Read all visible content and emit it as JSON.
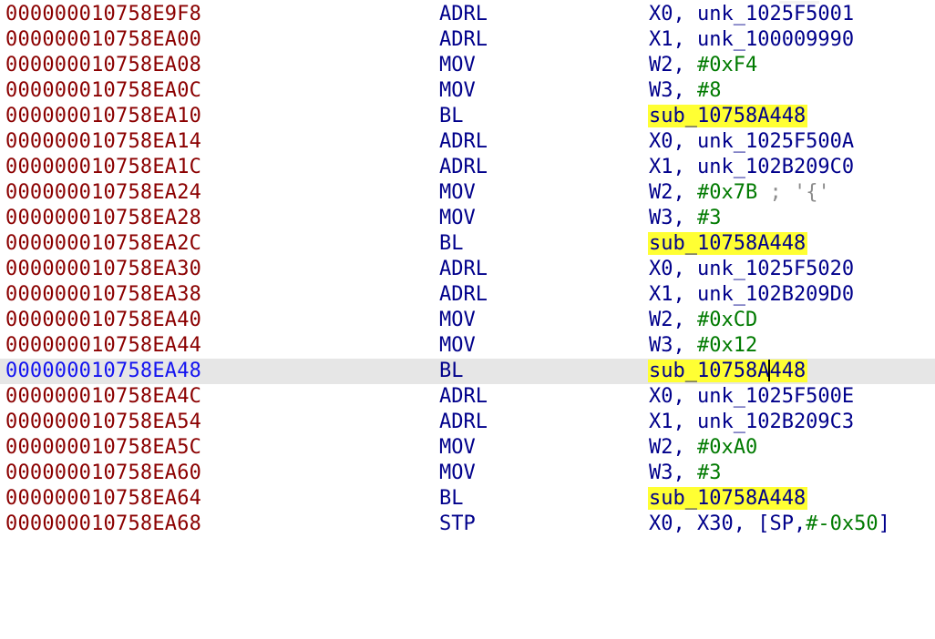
{
  "colors": {
    "address": "#8b0000",
    "address_current": "#1414f0",
    "mnemonic": "#00008b",
    "register": "#00008b",
    "immediate": "#007a00",
    "comment": "#8c8c8c",
    "name_highlight": "#ffff33",
    "current_line_bg": "#e6e6e6"
  },
  "listing": {
    "rows": [
      {
        "addr": "000000010758E9F8",
        "mnem": "ADRL",
        "op1": "X0, unk_1025F5001"
      },
      {
        "addr": "000000010758EA00",
        "mnem": "ADRL",
        "op1": "X1, unk_100009990"
      },
      {
        "addr": "000000010758EA08",
        "mnem": "MOV",
        "op1": "W2, ",
        "imm": "#0xF4"
      },
      {
        "addr": "000000010758EA0C",
        "mnem": "MOV",
        "op1": "W3, ",
        "imm": "#8"
      },
      {
        "addr": "000000010758EA10",
        "mnem": "BL",
        "callee": "sub_10758A448"
      },
      {
        "addr": "000000010758EA14",
        "mnem": "ADRL",
        "op1": "X0, unk_1025F500A"
      },
      {
        "addr": "000000010758EA1C",
        "mnem": "ADRL",
        "op1": "X1, unk_102B209C0"
      },
      {
        "addr": "000000010758EA24",
        "mnem": "MOV",
        "op1": "W2, ",
        "imm": "#0x7B",
        "comment": " ; '{'"
      },
      {
        "addr": "000000010758EA28",
        "mnem": "MOV",
        "op1": "W3, ",
        "imm": "#3"
      },
      {
        "addr": "000000010758EA2C",
        "mnem": "BL",
        "callee": "sub_10758A448"
      },
      {
        "addr": "000000010758EA30",
        "mnem": "ADRL",
        "op1": "X0, unk_1025F5020"
      },
      {
        "addr": "000000010758EA38",
        "mnem": "ADRL",
        "op1": "X1, unk_102B209D0"
      },
      {
        "addr": "000000010758EA40",
        "mnem": "MOV",
        "op1": "W2, ",
        "imm": "#0xCD"
      },
      {
        "addr": "000000010758EA44",
        "mnem": "MOV",
        "op1": "W3, ",
        "imm": "#0x12"
      },
      {
        "addr": "000000010758EA48",
        "mnem": "BL",
        "callee_a": "sub_10758A",
        "callee_b": "448",
        "current": true
      },
      {
        "addr": "000000010758EA4C",
        "mnem": "ADRL",
        "op1": "X0, unk_1025F500E"
      },
      {
        "addr": "000000010758EA54",
        "mnem": "ADRL",
        "op1": "X1, unk_102B209C3"
      },
      {
        "addr": "000000010758EA5C",
        "mnem": "MOV",
        "op1": "W2, ",
        "imm": "#0xA0"
      },
      {
        "addr": "000000010758EA60",
        "mnem": "MOV",
        "op1": "W3, ",
        "imm": "#3"
      },
      {
        "addr": "000000010758EA64",
        "mnem": "BL",
        "callee": "sub_10758A448"
      },
      {
        "addr": "000000010758EA68",
        "mnem": "STP",
        "op1": "X0, X30, [SP,",
        "imm": "#-0x50",
        "op2": "]"
      }
    ]
  }
}
